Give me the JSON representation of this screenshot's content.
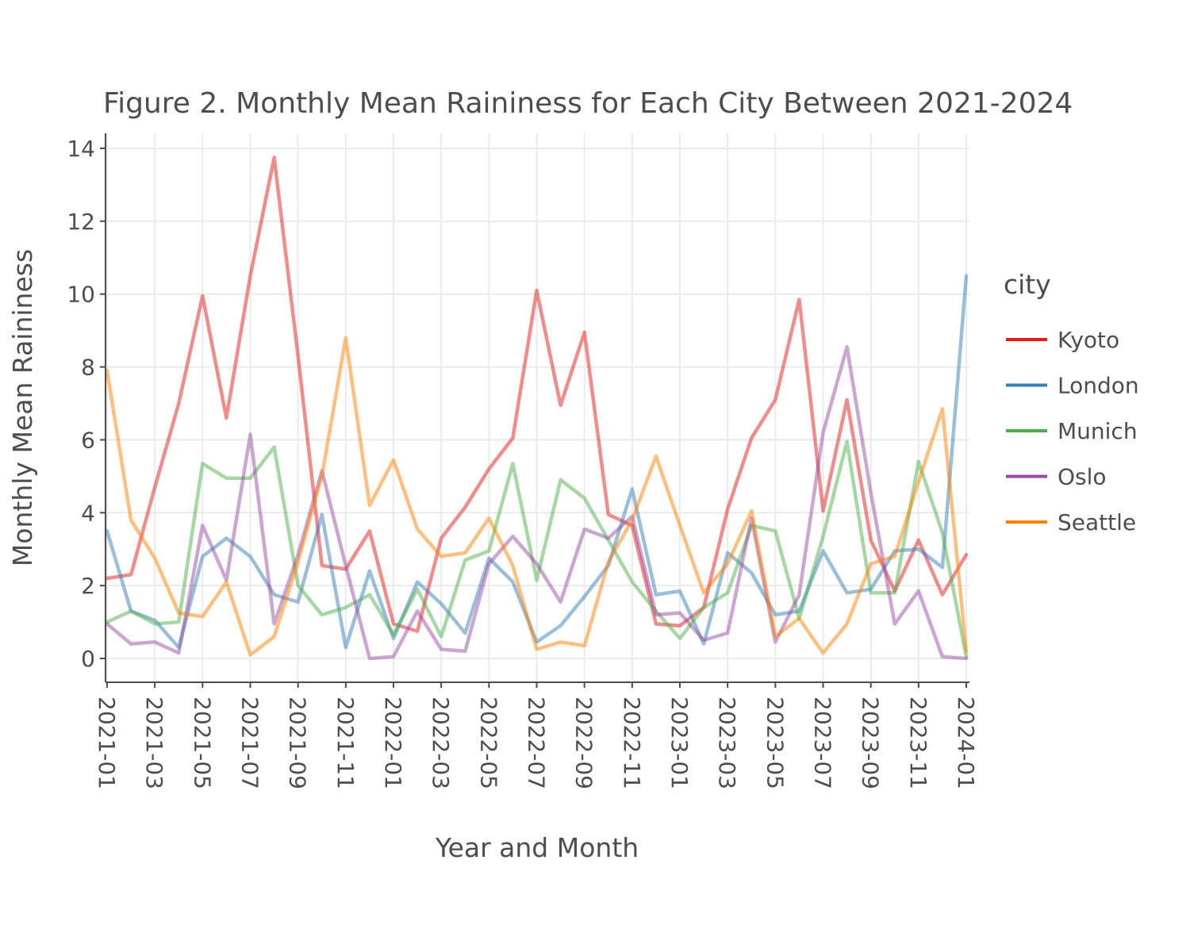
{
  "chart_data": {
    "type": "line",
    "title": "Figure 2. Monthly Mean Raininess for Each City Between 2021-2024",
    "xlabel": "Year and Month",
    "ylabel": "Monthly Mean Raininess",
    "ylim": [
      -0.6,
      14.5
    ],
    "yticks": [
      0,
      2,
      4,
      6,
      8,
      10,
      12,
      14
    ],
    "xtick_labels": [
      "2021-01",
      "2021-03",
      "2021-05",
      "2021-07",
      "2021-09",
      "2021-11",
      "2022-01",
      "2022-03",
      "2022-05",
      "2022-07",
      "2022-09",
      "2022-11",
      "2023-01",
      "2023-03",
      "2023-05",
      "2023-07",
      "2023-09",
      "2023-11",
      "2024-01"
    ],
    "x": [
      "2021-01",
      "2021-02",
      "2021-03",
      "2021-04",
      "2021-05",
      "2021-06",
      "2021-07",
      "2021-08",
      "2021-09",
      "2021-10",
      "2021-11",
      "2021-12",
      "2022-01",
      "2022-02",
      "2022-03",
      "2022-04",
      "2022-05",
      "2022-06",
      "2022-07",
      "2022-08",
      "2022-09",
      "2022-10",
      "2022-11",
      "2022-12",
      "2023-01",
      "2023-02",
      "2023-03",
      "2023-04",
      "2023-05",
      "2023-06",
      "2023-07",
      "2023-08",
      "2023-09",
      "2023-10",
      "2023-11",
      "2023-12",
      "2024-01"
    ],
    "grid": true,
    "legend": {
      "title": "city",
      "position": "right"
    },
    "series": [
      {
        "name": "Kyoto",
        "color": "#e41a1c",
        "values": [
          2.2,
          2.3,
          4.7,
          7.0,
          9.95,
          6.6,
          10.5,
          13.75,
          8.3,
          2.55,
          2.45,
          3.5,
          0.95,
          0.75,
          3.3,
          4.15,
          5.2,
          6.05,
          10.1,
          6.95,
          8.95,
          3.95,
          3.65,
          0.95,
          0.9,
          1.4,
          4.1,
          6.05,
          7.1,
          9.85,
          4.05,
          7.1,
          3.25,
          1.85,
          3.25,
          1.75,
          2.85
        ]
      },
      {
        "name": "London",
        "color": "#377eb8",
        "values": [
          3.5,
          1.3,
          1.05,
          0.3,
          2.8,
          3.3,
          2.8,
          1.75,
          1.55,
          3.95,
          0.3,
          2.4,
          0.55,
          2.1,
          1.5,
          0.7,
          2.75,
          2.1,
          0.45,
          0.9,
          1.7,
          2.55,
          4.65,
          1.75,
          1.85,
          0.4,
          2.9,
          2.35,
          1.2,
          1.3,
          2.95,
          1.8,
          1.9,
          2.95,
          3.0,
          2.5,
          10.5
        ]
      },
      {
        "name": "Munich",
        "color": "#4daf4a",
        "values": [
          1.0,
          1.3,
          0.95,
          1.0,
          5.35,
          4.95,
          4.95,
          5.8,
          2.0,
          1.2,
          1.4,
          1.75,
          0.65,
          1.9,
          0.6,
          2.7,
          2.95,
          5.35,
          2.15,
          4.9,
          4.4,
          3.25,
          2.1,
          1.3,
          0.55,
          1.4,
          1.8,
          3.65,
          3.5,
          1.1,
          3.35,
          5.95,
          1.8,
          1.8,
          5.4,
          3.45,
          0.05
        ]
      },
      {
        "name": "Oslo",
        "color": "#984ea3",
        "values": [
          0.95,
          0.4,
          0.45,
          0.15,
          3.65,
          2.15,
          6.15,
          0.95,
          2.85,
          5.15,
          2.55,
          0.0,
          0.05,
          1.3,
          0.25,
          0.2,
          2.6,
          3.35,
          2.6,
          1.55,
          3.55,
          3.3,
          3.9,
          1.2,
          1.25,
          0.5,
          0.7,
          3.85,
          0.45,
          1.75,
          6.2,
          8.55,
          4.55,
          0.95,
          1.85,
          0.05,
          0.0
        ]
      },
      {
        "name": "Seattle",
        "color": "#ff7f00",
        "values": [
          7.9,
          3.8,
          2.75,
          1.25,
          1.15,
          2.1,
          0.1,
          0.6,
          2.65,
          5.0,
          8.8,
          4.2,
          5.45,
          3.55,
          2.8,
          2.9,
          3.85,
          2.55,
          0.25,
          0.45,
          0.35,
          2.65,
          3.8,
          5.55,
          3.65,
          1.8,
          2.6,
          4.05,
          0.6,
          1.1,
          0.15,
          0.95,
          2.6,
          2.8,
          4.85,
          6.85,
          0.2
        ]
      }
    ]
  }
}
